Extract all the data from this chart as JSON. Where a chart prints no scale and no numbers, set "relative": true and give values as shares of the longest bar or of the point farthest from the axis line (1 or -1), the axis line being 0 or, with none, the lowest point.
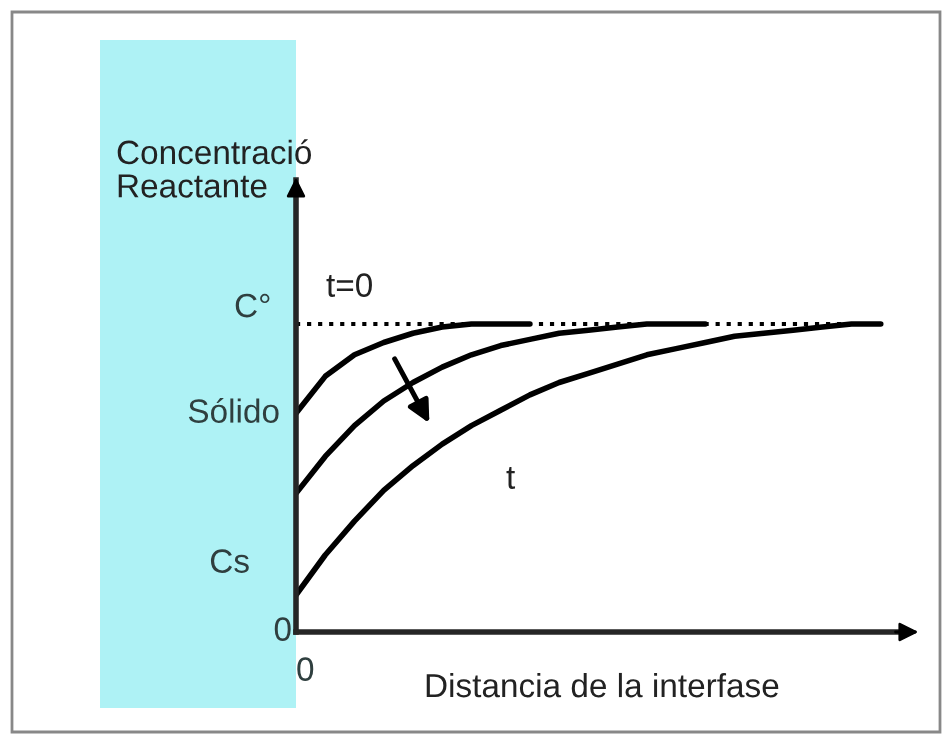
{
  "chart_data": {
    "type": "line",
    "relative": true,
    "ylabel": "Concentració\nReactante",
    "xlabel": "Distancia de la interfase",
    "categories": [
      null,
      null,
      null,
      null,
      null,
      null,
      null,
      null,
      null,
      null,
      null,
      null,
      null,
      null,
      null,
      null,
      null,
      null,
      null,
      null,
      null
    ],
    "series": [
      {
        "color": "#000000",
        "values": [
          0.71,
          0.83,
          0.9,
          0.94,
          0.97,
          0.99,
          1.0,
          1.0,
          1.0,
          null,
          null,
          null,
          null,
          null,
          null,
          null,
          null,
          null,
          null,
          null,
          null
        ]
      },
      {
        "color": "#000000",
        "values": [
          0.45,
          0.57,
          0.67,
          0.75,
          0.81,
          0.86,
          0.9,
          0.93,
          0.95,
          0.97,
          0.98,
          0.99,
          1.0,
          1.0,
          1.0,
          null,
          null,
          null,
          null,
          null,
          null
        ]
      },
      {
        "color": "#000000",
        "values": [
          0.12,
          0.25,
          0.36,
          0.46,
          0.54,
          0.61,
          0.67,
          0.72,
          0.77,
          0.81,
          0.84,
          0.87,
          0.9,
          0.92,
          0.94,
          0.96,
          0.97,
          0.98,
          0.99,
          1.0,
          1.0
        ]
      }
    ],
    "ref_lines": [
      {
        "axis": "y",
        "value": 1,
        "label": "C°",
        "line_style": "dotted",
        "color": "#000000"
      }
    ],
    "annotations": [
      "t=0",
      "Sólido",
      "Cs",
      "t",
      "0",
      "0"
    ]
  }
}
